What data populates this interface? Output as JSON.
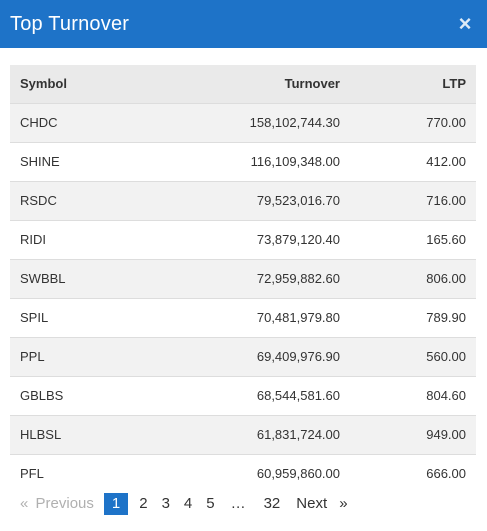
{
  "header": {
    "title": "Top Turnover",
    "close_label": "×"
  },
  "table": {
    "columns": [
      "Symbol",
      "Turnover",
      "LTP"
    ],
    "rows": [
      [
        "CHDC",
        "158,102,744.30",
        "770.00"
      ],
      [
        "SHINE",
        "116,109,348.00",
        "412.00"
      ],
      [
        "RSDC",
        "79,523,016.70",
        "716.00"
      ],
      [
        "RIDI",
        "73,879,120.40",
        "165.60"
      ],
      [
        "SWBBL",
        "72,959,882.60",
        "806.00"
      ],
      [
        "SPIL",
        "70,481,979.80",
        "789.90"
      ],
      [
        "PPL",
        "69,409,976.90",
        "560.00"
      ],
      [
        "GBLBS",
        "68,544,581.60",
        "804.60"
      ],
      [
        "HLBSL",
        "61,831,724.00",
        "949.00"
      ],
      [
        "PFL",
        "60,959,860.00",
        "666.00"
      ]
    ]
  },
  "pagination": {
    "prev_arrow": "«",
    "previous": "Previous",
    "pages": [
      "1",
      "2",
      "3",
      "4",
      "5"
    ],
    "ellipsis": "…",
    "last": "32",
    "next": "Next",
    "next_arrow": "»"
  },
  "colors": {
    "header_bg": "#1e73c8",
    "active_page": "#1e73c8"
  }
}
